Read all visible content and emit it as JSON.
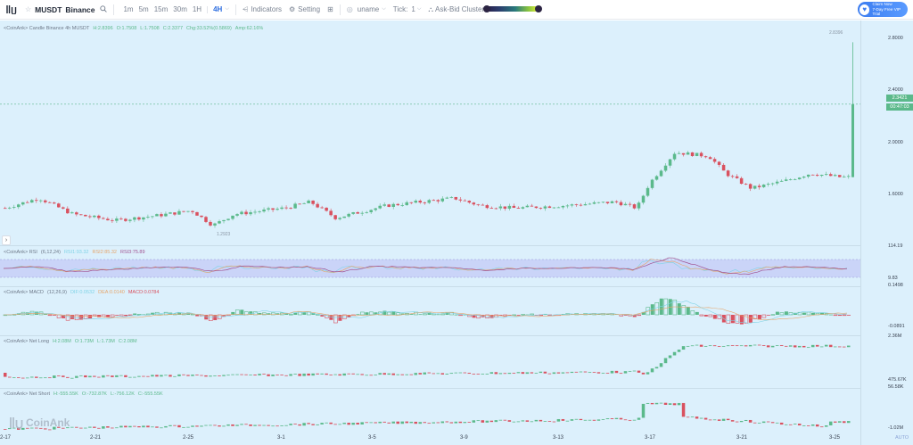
{
  "topbar": {
    "symbol": "MUSDT",
    "exchange": "Binance",
    "timeframes": [
      "1m",
      "5m",
      "15m",
      "30m",
      "1H",
      "4H"
    ],
    "active_timeframe": "4H",
    "indicators_label": "Indicators",
    "setting_label": "Setting",
    "uname_label": "uname",
    "tick_label": "Tick:",
    "tick_value": "1",
    "cluster_label": "Ask-Bid Cluster",
    "vip_line1": "Claim Now",
    "vip_line2": "7-Day Free VIP Trial",
    "icons": [
      "layout-icon",
      "star-icon",
      "search-icon",
      "chevron-down-icon",
      "indicators-icon",
      "gear-icon",
      "grid-icon",
      "eye-icon",
      "cluster-icon"
    ]
  },
  "candle_panel": {
    "title": "<CoinAnk> Candle  Binance 4h MUSDT",
    "high": "H:2.8396",
    "open": "O:1.7508",
    "low": "L:1.7508",
    "close": "C:2.3377",
    "chg": "Chg:33.52%(0.5869)",
    "amp": "Amp:62.16%",
    "high_marker": "2.8396",
    "low_marker": "1.2923",
    "axis": [
      "2.8000",
      "2.4000",
      "2.0000",
      "1.6000"
    ],
    "last_price": "2.3421",
    "countdown": "00:47:03"
  },
  "rsi_panel": {
    "title": "<CoinAnk> RSI",
    "params": "(6,12,24)",
    "rsi1": "RSI1:93.32",
    "rsi2": "RSI2:85.32",
    "rsi3": "RSI3:75.89",
    "axis_top": "114.19",
    "axis_bottom": "9.83"
  },
  "macd_panel": {
    "title": "<CoinAnk> MACD",
    "params": "(12,26,9)",
    "dif": "DIF:0.0532",
    "dea": "DEA:0.0140",
    "macd": "MACD:0.0784",
    "axis_top": "0.1498",
    "axis_bottom": "-0.0891"
  },
  "netlong_panel": {
    "title": "<CoinAnk> Net Long",
    "high": "H:2.08M",
    "open": "O:1.73M",
    "low": "L:1.73M",
    "close": "C:2.08M",
    "axis_top": "2.36M",
    "axis_bottom": "475.67K"
  },
  "netshort_panel": {
    "title": "<CoinAnk> Net Short",
    "high": "H:-555.55K",
    "open": "O:-732.87K",
    "low": "L:-756.12K",
    "close": "C:-555.55K",
    "axis_top": "56.58K",
    "axis_bottom": "-1.02M"
  },
  "x_axis": [
    "2-17",
    "2-21",
    "2-25",
    "3-1",
    "3-5",
    "3-9",
    "3-13",
    "3-17",
    "3-21",
    "3-25"
  ],
  "watermark": "CoinAnk",
  "auto_label": "AUTO",
  "colors": {
    "up": "#5bb98b",
    "down": "#d9515f",
    "background": "#dcf0fc",
    "rsi1": "#7fd3e6",
    "rsi2": "#e6a56a",
    "rsi3": "#a0508f",
    "accent": "#2f6fe0"
  }
}
